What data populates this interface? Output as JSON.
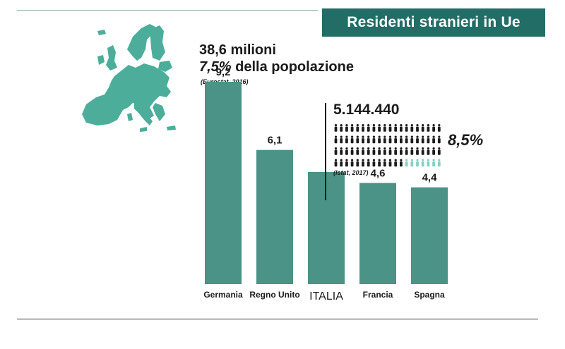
{
  "title": "Residenti stranieri in Ue",
  "eu_stats": {
    "total": "38,6 milioni",
    "share_pct": "7,5%",
    "share_text": " della popolazione",
    "source": "(Eurostat, 2016)"
  },
  "italia_stats": {
    "count": "5.144.440",
    "share": "8,5%",
    "source": "(Istat, 2017)",
    "icons_total": 80,
    "icons_highlighted": 7
  },
  "colors": {
    "bar": "#4a9386",
    "map": "#4cae9a",
    "title_bg": "#226d66",
    "person": "#1b1b1b",
    "person_highlight": "#86cfc3"
  },
  "chart_data": {
    "type": "bar",
    "title": "",
    "xlabel": "",
    "ylabel": "",
    "ylim": [
      0,
      10
    ],
    "categories": [
      "Germania",
      "Regno Unito",
      "ITALIA",
      "Francia",
      "Spagna"
    ],
    "values": [
      9.2,
      6.1,
      5.1,
      4.6,
      4.4
    ],
    "value_labels": [
      "9,2",
      "6,1",
      "",
      "4,6",
      "4,4"
    ]
  }
}
